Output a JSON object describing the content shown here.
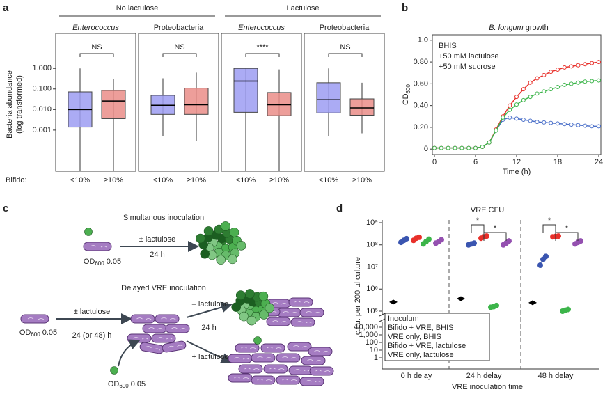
{
  "chart_data": [
    {
      "type": "box",
      "label": "a",
      "ylabel": [
        "Bacteria abundance",
        "(log transformed)"
      ],
      "xlabel": "Bifido:",
      "log_y": true,
      "ylim": [
        1e-05,
        50
      ],
      "yticks": [
        {
          "value": 1,
          "label": "1.000"
        },
        {
          "value": 0.1,
          "label": "0.100"
        },
        {
          "value": 0.01,
          "label": "0.010"
        },
        {
          "value": 0.001,
          "label": "0.001"
        }
      ],
      "group_labels": [
        "No lactulose",
        "Lactulose"
      ],
      "colors": [
        "#9c9cf2",
        "#ea8d88"
      ],
      "panels": [
        {
          "title": "Enterococcus",
          "italic": true,
          "significance": "NS",
          "categories": [
            "<10%",
            "≥10%"
          ],
          "boxes": [
            {
              "low": 1e-05,
              "q1": 0.0014,
              "median": 0.01,
              "q3": 0.072,
              "high": 1
            },
            {
              "low": 1e-05,
              "q1": 0.0036,
              "median": 0.026,
              "q3": 0.085,
              "high": 0.3
            }
          ]
        },
        {
          "title": "Proteobacteria",
          "italic": false,
          "significance": "NS",
          "categories": [
            "<10%",
            "≥10%"
          ],
          "boxes": [
            {
              "low": 0.0005,
              "q1": 0.0058,
              "median": 0.016,
              "q3": 0.049,
              "high": 0.33
            },
            {
              "low": 0.0003,
              "q1": 0.0058,
              "median": 0.017,
              "q3": 0.11,
              "high": 0.62
            }
          ]
        },
        {
          "title": "Enterococcus",
          "italic": true,
          "significance": "****",
          "categories": [
            "<10%",
            "≥10%"
          ],
          "boxes": [
            {
              "low": 1e-05,
              "q1": 0.0073,
              "median": 0.24,
              "q3": 1,
              "high": 1
            },
            {
              "low": 1e-05,
              "q1": 0.005,
              "median": 0.017,
              "q3": 0.067,
              "high": 0.9
            }
          ]
        },
        {
          "title": "Proteobacteria",
          "italic": false,
          "significance": "NS",
          "categories": [
            "<10%",
            "≥10%"
          ],
          "boxes": [
            {
              "low": 0.0005,
              "q1": 0.0068,
              "median": 0.03,
              "q3": 0.2,
              "high": 1
            },
            {
              "low": 0.0007,
              "q1": 0.0053,
              "median": 0.012,
              "q3": 0.033,
              "high": 0.2
            }
          ]
        }
      ]
    },
    {
      "type": "line",
      "label": "b",
      "title": [
        "B. longum",
        "growth"
      ],
      "ylabel": [
        "OD",
        "600"
      ],
      "xlabel": "Time (h)",
      "xlim": [
        0,
        24
      ],
      "xticks": [
        0,
        6,
        12,
        18,
        24
      ],
      "ylim": [
        -0.05,
        1.05
      ],
      "yticks": [
        0,
        {
          "value": 0.2,
          "label": "0.20"
        },
        {
          "value": 0.4,
          "label": "0.40"
        },
        {
          "value": 0.6,
          "label": "0.60"
        },
        {
          "value": 0.8,
          "label": "0.80"
        },
        {
          "value": 1.0,
          "label": "1.0"
        }
      ],
      "x": [
        0,
        1,
        2,
        3,
        4,
        5,
        6,
        7,
        8,
        9,
        10,
        11,
        12,
        13,
        14,
        15,
        16,
        17,
        18,
        19,
        20,
        21,
        22,
        23,
        24
      ],
      "series": [
        {
          "name": "BHIS",
          "color": "#4a6fc9",
          "values": [
            0.01,
            0.01,
            0.01,
            0.01,
            0.01,
            0.01,
            0.01,
            0.02,
            0.06,
            0.17,
            0.27,
            0.29,
            0.28,
            0.27,
            0.26,
            0.25,
            0.245,
            0.24,
            0.235,
            0.23,
            0.225,
            0.22,
            0.215,
            0.21,
            0.21
          ]
        },
        {
          "name": "+50 mM lactulose",
          "color": "#e8302a",
          "values": [
            0.01,
            0.01,
            0.01,
            0.01,
            0.01,
            0.01,
            0.01,
            0.02,
            0.06,
            0.18,
            0.3,
            0.4,
            0.48,
            0.55,
            0.61,
            0.65,
            0.68,
            0.71,
            0.73,
            0.75,
            0.76,
            0.77,
            0.78,
            0.79,
            0.8
          ]
        },
        {
          "name": "+50 mM sucrose",
          "color": "#3cb54a",
          "values": [
            0.01,
            0.01,
            0.01,
            0.01,
            0.01,
            0.01,
            0.01,
            0.02,
            0.06,
            0.17,
            0.29,
            0.36,
            0.41,
            0.45,
            0.48,
            0.51,
            0.53,
            0.55,
            0.57,
            0.59,
            0.6,
            0.61,
            0.62,
            0.625,
            0.63
          ]
        }
      ]
    },
    {
      "type": "scatter",
      "label": "d",
      "title": "VRE CFU",
      "ylabel": "c.f.u. per 200 µl culture",
      "xlabel": "VRE inoculation time",
      "categories": [
        "0 h delay",
        "24 h delay",
        "48 h delay"
      ],
      "log_y": true,
      "y_segments": [
        {
          "ylim": [
            1,
            10000
          ],
          "yticks": [
            {
              "value": 10000,
              "label": "10,000"
            },
            {
              "value": 1000,
              "label": "1,000"
            },
            100,
            10,
            1
          ]
        },
        {
          "ylim": [
            100000,
            1000000000
          ],
          "yticks": [
            {
              "value": 100000,
              "label": "10⁵"
            },
            {
              "value": 1000000,
              "label": "10⁶"
            },
            {
              "value": 10000000,
              "label": "10⁷"
            },
            {
              "value": 100000000,
              "label": "10⁸"
            },
            {
              "value": 1000000000,
              "label": "10⁹"
            }
          ]
        }
      ],
      "legend_title": "Inoculum",
      "significance": [
        "*",
        "*",
        "*",
        "*"
      ],
      "series": [
        {
          "color": "#000000",
          "values": [
            260000,
            370000,
            240000
          ]
        },
        {
          "name": "Bifido + VRE, BHIS",
          "color": "#3a55b0",
          "values": [
            [
              130000000,
              160000000,
              190000000
            ],
            [
              100000000,
              110000000,
              120000000
            ],
            [
              12000000,
              22000000,
              30000000
            ]
          ]
        },
        {
          "name": "VRE only, BHIS",
          "color": "#e8302a",
          "values": [
            [
              160000000,
              200000000,
              220000000
            ],
            [
              200000000,
              230000000,
              250000000
            ],
            [
              230000000,
              240000000,
              250000000
            ]
          ]
        },
        {
          "name": "Bifido + VRE, lactulose",
          "color": "#3cb54a",
          "values": [
            [
              110000000,
              140000000,
              180000000
            ],
            [
              150000,
              160000,
              180000
            ],
            [
              100000,
              110000,
              120000
            ]
          ]
        },
        {
          "name": "VRE only, lactulose",
          "color": "#9450b0",
          "values": [
            [
              120000000,
              140000000,
              170000000
            ],
            [
              100000000,
              120000000,
              150000000
            ],
            [
              110000000,
              130000000,
              150000000
            ]
          ]
        }
      ]
    }
  ],
  "diagram": {
    "label": "c",
    "simultaneous": {
      "title": "Simultanous inoculation",
      "arrow_top": "± lactulose",
      "arrow_bottom": "24 h",
      "start": {
        "od": "OD",
        "sub": "600",
        "value": "0.05"
      }
    },
    "delayed": {
      "title": "Delayed VRE inoculation",
      "arrow_top": "± lactulose",
      "arrow_bottom": "24 (or 48) h",
      "start": {
        "od": "OD",
        "sub": "600",
        "value": "0.05"
      },
      "vre": {
        "od": "OD",
        "sub": "600",
        "value": "0.05"
      },
      "branch_minus": "– lactulose",
      "branch_time": "24 h",
      "branch_plus": "+ lactulose"
    }
  }
}
